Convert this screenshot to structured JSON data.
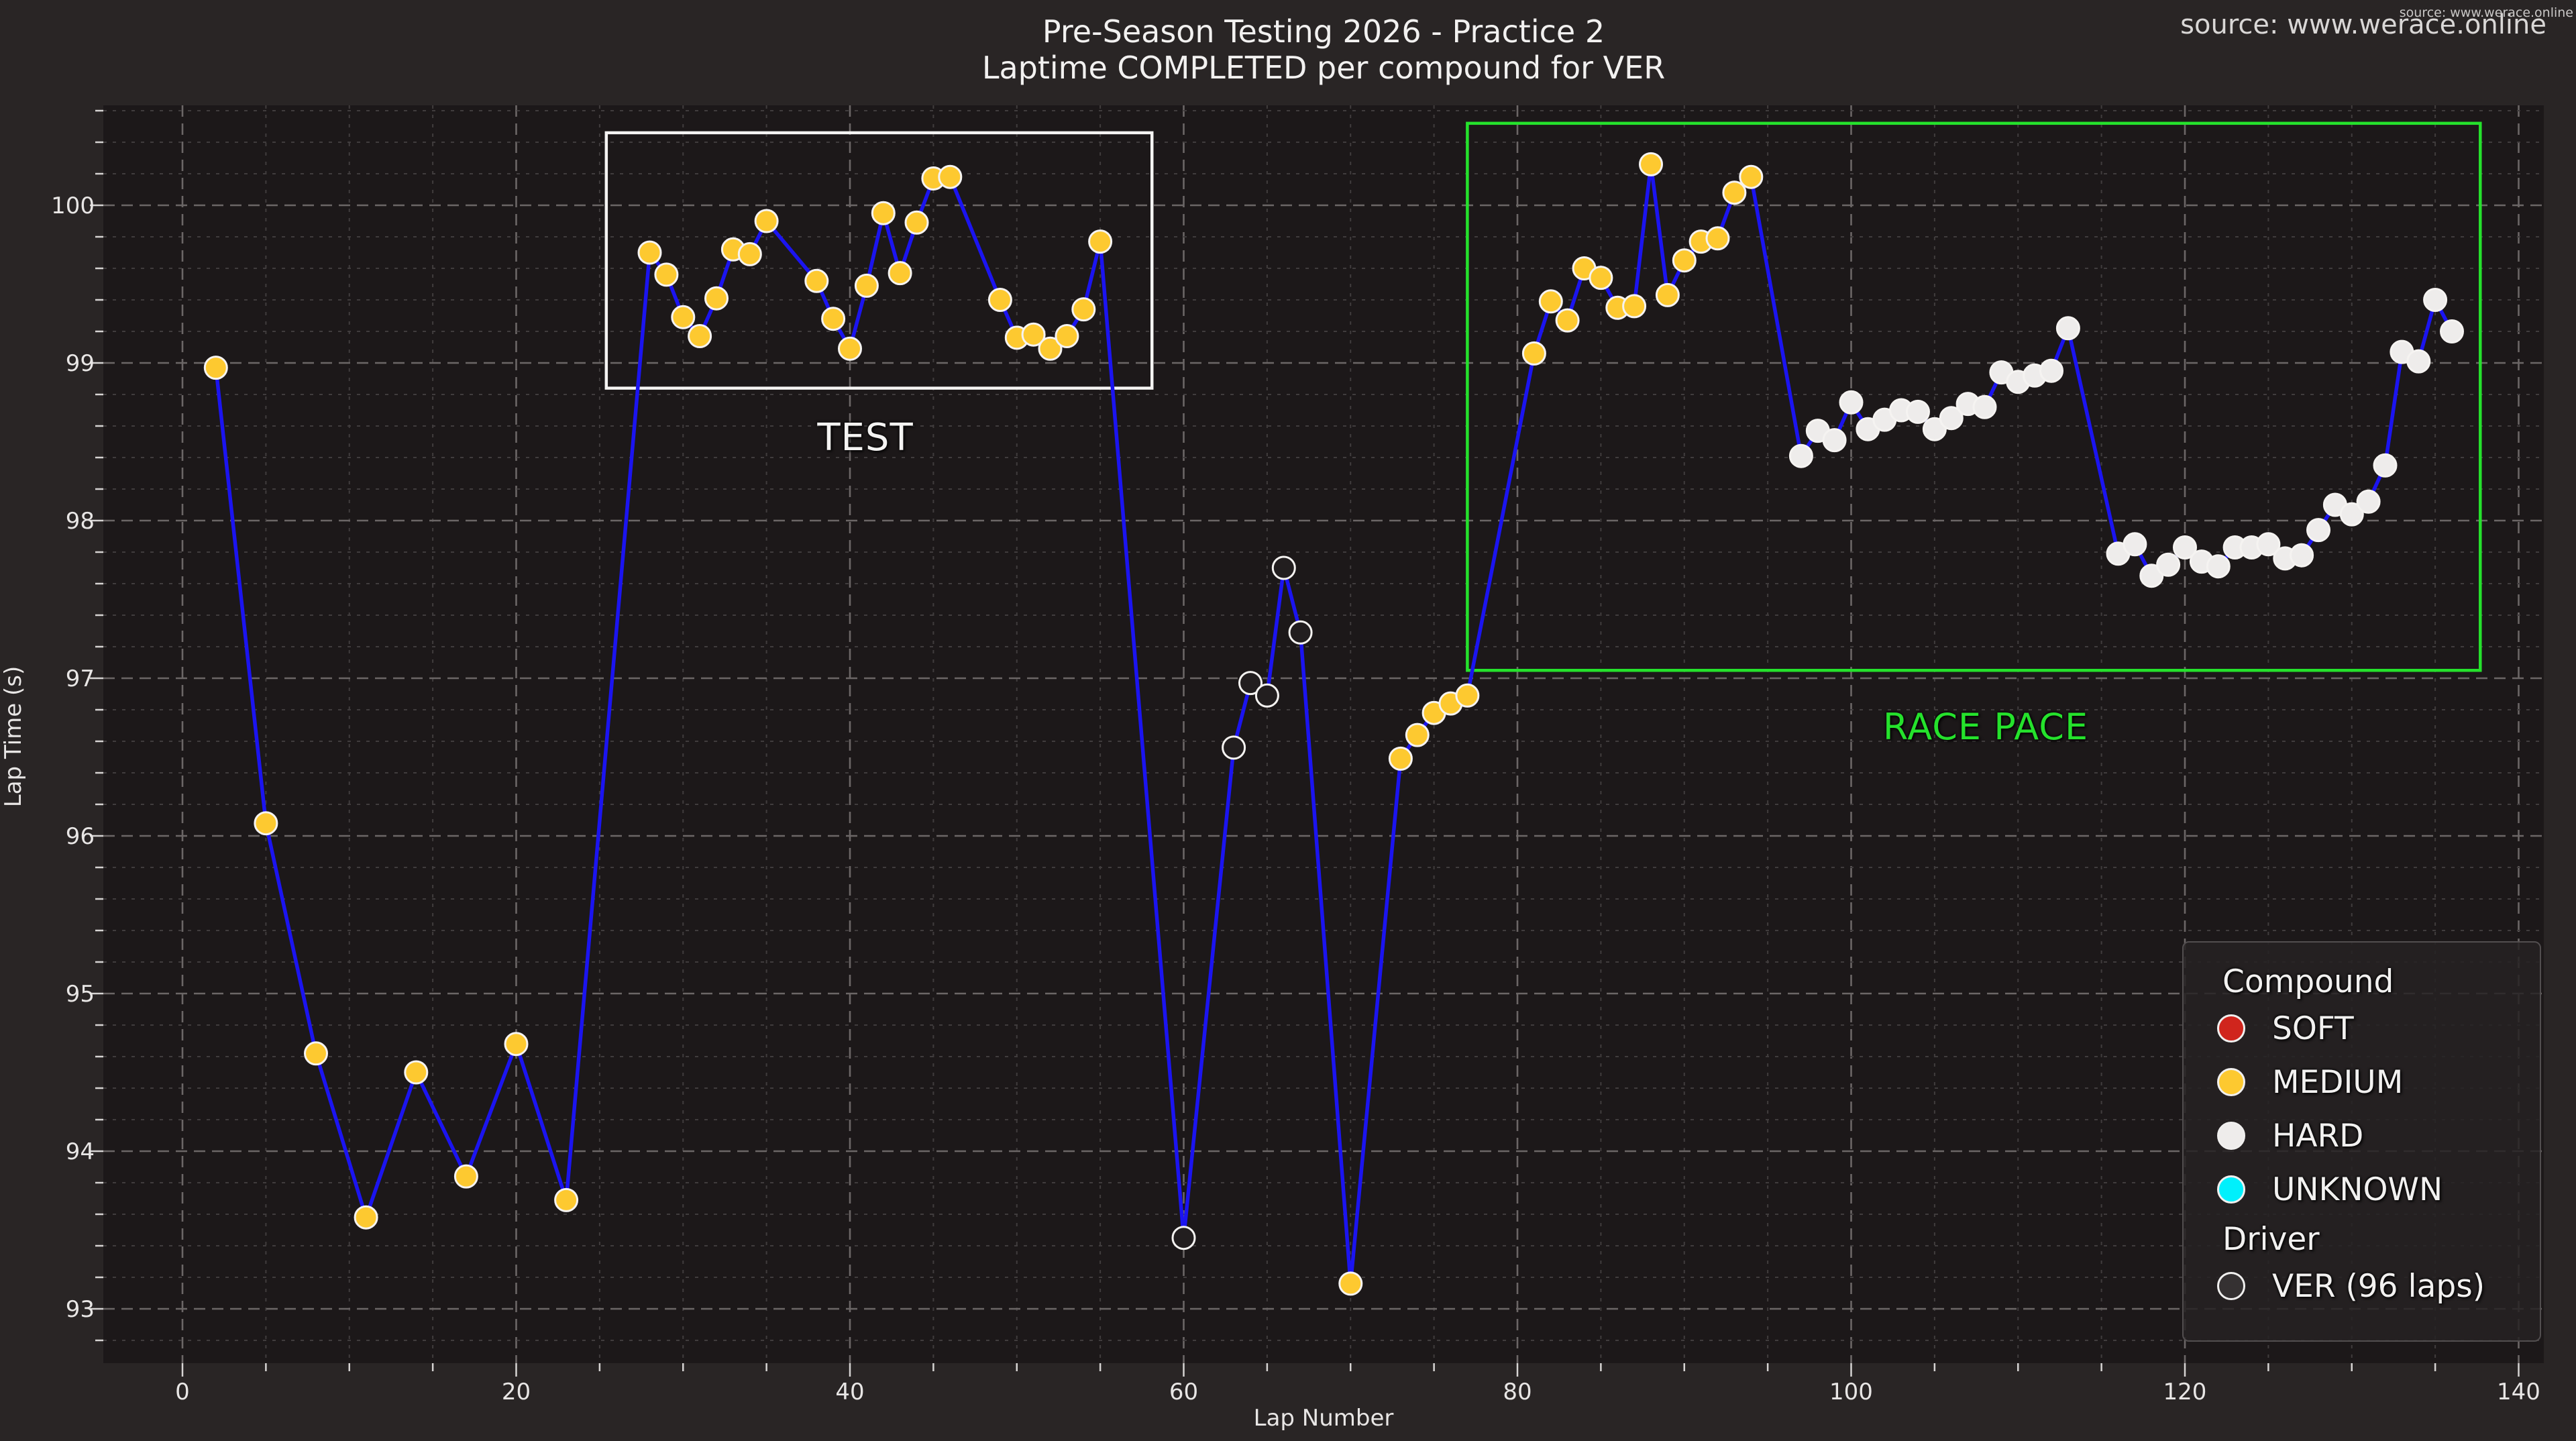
{
  "figure": {
    "title_line1": "Pre-Season Testing 2026 - Practice 2",
    "title_line2": "Laptime COMPLETED per compound for VER",
    "source_large": "source: www.werace.online",
    "source_small": "source: www.werace.online"
  },
  "axes": {
    "xlabel": "Lap Number",
    "ylabel": "Lap Time (s)",
    "x_major_ticks": [
      0,
      20,
      40,
      60,
      80,
      100,
      120,
      140
    ],
    "x_minor_step": 5,
    "y_major_ticks": [
      93,
      94,
      95,
      96,
      97,
      98,
      99,
      100
    ],
    "y_minor_step": 0.2,
    "xlim": [
      -4.7,
      141.5
    ],
    "ylim": [
      92.66,
      100.63
    ],
    "grid": true
  },
  "colors": {
    "figure_bg": "#292525",
    "plot_bg": "#1c1819",
    "line": "#1b14f0",
    "grid_major": "#6b6666",
    "grid_minor": "#403c3d",
    "tick": "#d6d4d3",
    "tick_label": "#e8e6e5"
  },
  "annotations": {
    "test_box": {
      "label": "TEST",
      "lap_start": 25.4,
      "lap_end": 58.1,
      "time_low": 98.84,
      "time_high": 100.46,
      "color": "#f5f4f3"
    },
    "race_box": {
      "label": "RACE PACE",
      "lap_start": 77.0,
      "lap_end": 137.7,
      "time_low": 97.05,
      "time_high": 100.52,
      "color": "#25e22c"
    }
  },
  "legend": {
    "compound_title": "Compound",
    "driver_title": "Driver",
    "compounds": [
      {
        "label": "SOFT",
        "color": "#d0251d"
      },
      {
        "label": "MEDIUM",
        "color": "#fdc930"
      },
      {
        "label": "HARD",
        "color": "#eeeceb"
      },
      {
        "label": "UNKNOWN",
        "color": "#00f0fc"
      }
    ],
    "driver": {
      "label": "VER (96 laps)",
      "color": "#353132"
    }
  },
  "chart_data": {
    "type": "line",
    "title": "Pre-Season Testing 2026 - Practice 2 / Laptime COMPLETED per compound for VER",
    "xlabel": "Lap Number",
    "ylabel": "Lap Time (s)",
    "xlim": [
      -4.7,
      141.5
    ],
    "ylim": [
      92.66,
      100.63
    ],
    "legend_position": "lower right",
    "compound_colors": {
      "MEDIUM": "#fdc930",
      "HARD": "#eeeceb",
      "NONE": "#221e1f",
      "SOFT": "#d0251d",
      "UNKNOWN": "#00f0fc"
    },
    "marker_edge": "#f5f3f1",
    "series": [
      {
        "name": "VER",
        "line_color": "#1b14f0",
        "points": [
          [
            2,
            98.97,
            "MEDIUM"
          ],
          [
            5,
            96.08,
            "MEDIUM"
          ],
          [
            8,
            94.62,
            "MEDIUM"
          ],
          [
            11,
            93.58,
            "MEDIUM"
          ],
          [
            14,
            94.5,
            "MEDIUM"
          ],
          [
            17,
            93.84,
            "MEDIUM"
          ],
          [
            20,
            94.68,
            "MEDIUM"
          ],
          [
            23,
            93.69,
            "MEDIUM"
          ],
          [
            28,
            99.7,
            "MEDIUM"
          ],
          [
            29,
            99.56,
            "MEDIUM"
          ],
          [
            30,
            99.29,
            "MEDIUM"
          ],
          [
            31,
            99.17,
            "MEDIUM"
          ],
          [
            32,
            99.41,
            "MEDIUM"
          ],
          [
            33,
            99.72,
            "MEDIUM"
          ],
          [
            34,
            99.69,
            "MEDIUM"
          ],
          [
            35,
            99.9,
            "MEDIUM"
          ],
          [
            38,
            99.52,
            "MEDIUM"
          ],
          [
            39,
            99.28,
            "MEDIUM"
          ],
          [
            40,
            99.09,
            "MEDIUM"
          ],
          [
            41,
            99.49,
            "MEDIUM"
          ],
          [
            42,
            99.95,
            "MEDIUM"
          ],
          [
            43,
            99.57,
            "MEDIUM"
          ],
          [
            44,
            99.89,
            "MEDIUM"
          ],
          [
            45,
            100.17,
            "MEDIUM"
          ],
          [
            46,
            100.18,
            "MEDIUM"
          ],
          [
            49,
            99.4,
            "MEDIUM"
          ],
          [
            50,
            99.16,
            "MEDIUM"
          ],
          [
            51,
            99.18,
            "MEDIUM"
          ],
          [
            52,
            99.09,
            "MEDIUM"
          ],
          [
            53,
            99.17,
            "MEDIUM"
          ],
          [
            54,
            99.34,
            "MEDIUM"
          ],
          [
            55,
            99.77,
            "MEDIUM"
          ],
          [
            60,
            93.45,
            "NONE"
          ],
          [
            63,
            96.56,
            "NONE"
          ],
          [
            64,
            96.97,
            "NONE"
          ],
          [
            65,
            96.89,
            "NONE"
          ],
          [
            66,
            97.7,
            "NONE"
          ],
          [
            67,
            97.29,
            "NONE"
          ],
          [
            70,
            93.16,
            "MEDIUM"
          ],
          [
            73,
            96.49,
            "MEDIUM"
          ],
          [
            74,
            96.64,
            "MEDIUM"
          ],
          [
            75,
            96.78,
            "MEDIUM"
          ],
          [
            76,
            96.84,
            "MEDIUM"
          ],
          [
            77,
            96.89,
            "MEDIUM"
          ],
          [
            81,
            99.06,
            "MEDIUM"
          ],
          [
            82,
            99.39,
            "MEDIUM"
          ],
          [
            83,
            99.27,
            "MEDIUM"
          ],
          [
            84,
            99.6,
            "MEDIUM"
          ],
          [
            85,
            99.54,
            "MEDIUM"
          ],
          [
            86,
            99.35,
            "MEDIUM"
          ],
          [
            87,
            99.36,
            "MEDIUM"
          ],
          [
            88,
            100.26,
            "MEDIUM"
          ],
          [
            89,
            99.43,
            "MEDIUM"
          ],
          [
            90,
            99.65,
            "MEDIUM"
          ],
          [
            91,
            99.77,
            "MEDIUM"
          ],
          [
            92,
            99.79,
            "MEDIUM"
          ],
          [
            93,
            100.08,
            "MEDIUM"
          ],
          [
            94,
            100.18,
            "MEDIUM"
          ],
          [
            97,
            98.41,
            "HARD"
          ],
          [
            98,
            98.57,
            "HARD"
          ],
          [
            99,
            98.51,
            "HARD"
          ],
          [
            100,
            98.75,
            "HARD"
          ],
          [
            101,
            98.58,
            "HARD"
          ],
          [
            102,
            98.64,
            "HARD"
          ],
          [
            103,
            98.7,
            "HARD"
          ],
          [
            104,
            98.69,
            "HARD"
          ],
          [
            105,
            98.58,
            "HARD"
          ],
          [
            106,
            98.65,
            "HARD"
          ],
          [
            107,
            98.74,
            "HARD"
          ],
          [
            108,
            98.72,
            "HARD"
          ],
          [
            109,
            98.94,
            "HARD"
          ],
          [
            110,
            98.88,
            "HARD"
          ],
          [
            111,
            98.92,
            "HARD"
          ],
          [
            112,
            98.95,
            "HARD"
          ],
          [
            113,
            99.22,
            "HARD"
          ],
          [
            116,
            97.79,
            "HARD"
          ],
          [
            117,
            97.85,
            "HARD"
          ],
          [
            118,
            97.65,
            "HARD"
          ],
          [
            119,
            97.72,
            "HARD"
          ],
          [
            120,
            97.83,
            "HARD"
          ],
          [
            121,
            97.74,
            "HARD"
          ],
          [
            122,
            97.71,
            "HARD"
          ],
          [
            123,
            97.83,
            "HARD"
          ],
          [
            124,
            97.83,
            "HARD"
          ],
          [
            125,
            97.85,
            "HARD"
          ],
          [
            126,
            97.76,
            "HARD"
          ],
          [
            127,
            97.78,
            "HARD"
          ],
          [
            128,
            97.94,
            "HARD"
          ],
          [
            129,
            98.1,
            "HARD"
          ],
          [
            130,
            98.04,
            "HARD"
          ],
          [
            131,
            98.12,
            "HARD"
          ],
          [
            132,
            98.35,
            "HARD"
          ],
          [
            133,
            99.07,
            "HARD"
          ],
          [
            134,
            99.01,
            "HARD"
          ],
          [
            135,
            99.4,
            "HARD"
          ],
          [
            136,
            99.2,
            "HARD"
          ]
        ]
      }
    ]
  }
}
